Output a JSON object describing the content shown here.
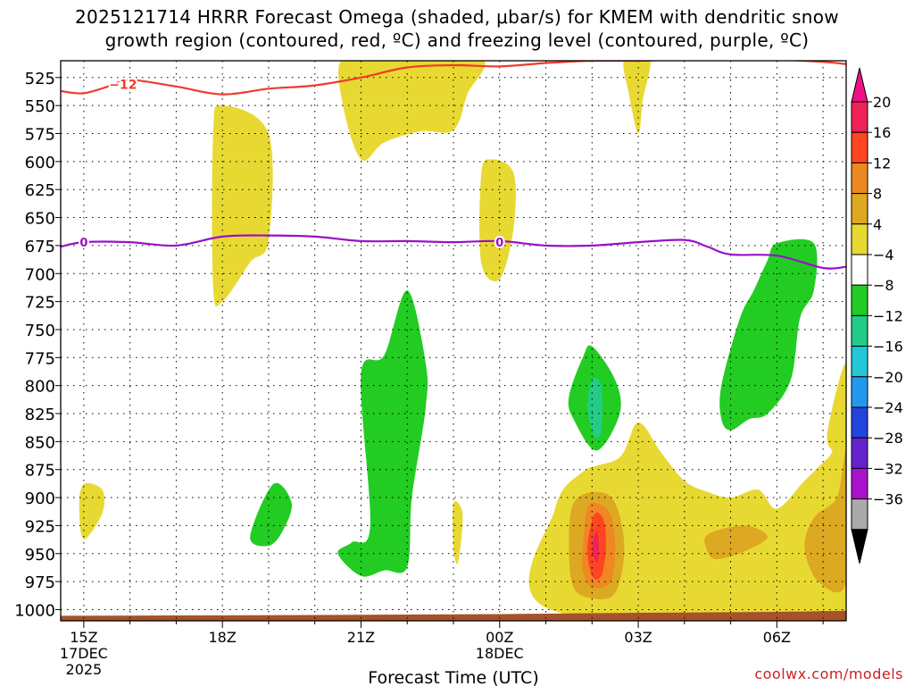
{
  "chart_data": {
    "type": "time-height-contour",
    "title_line1": "2025121714 HRRR Forecast Omega (shaded, μbar/s) for KMEM with dendritic snow",
    "title_line2": "growth region (contoured, red, ºC) and freezing level (contoured, purple, ºC)",
    "xlabel": "Forecast Time (UTC)",
    "xlim_hours": [
      14.5,
      31.5
    ],
    "ylim_hpa": [
      1010,
      510
    ],
    "x_ticks": [
      {
        "hour": 15,
        "label": "15Z",
        "sub1": "17DEC",
        "sub2": "2025"
      },
      {
        "hour": 18,
        "label": "18Z",
        "sub1": "",
        "sub2": ""
      },
      {
        "hour": 21,
        "label": "21Z",
        "sub1": "",
        "sub2": ""
      },
      {
        "hour": 24,
        "label": "00Z",
        "sub1": "18DEC",
        "sub2": ""
      },
      {
        "hour": 27,
        "label": "03Z",
        "sub1": "",
        "sub2": ""
      },
      {
        "hour": 30,
        "label": "06Z",
        "sub1": "",
        "sub2": ""
      }
    ],
    "y_ticks": [
      525,
      550,
      575,
      600,
      625,
      650,
      675,
      700,
      725,
      750,
      775,
      800,
      825,
      850,
      875,
      900,
      925,
      950,
      975,
      1000
    ],
    "colorbar": {
      "labels": [
        "20",
        "16",
        "12",
        "8",
        "4",
        "−4",
        "−8",
        "−12",
        "−16",
        "−20",
        "−24",
        "−28",
        "−32",
        "−36"
      ],
      "colors": [
        "#ee2255",
        "#ff4422",
        "#ee8822",
        "#dda822",
        "#e8d932",
        "#ffffff",
        "#22cc22",
        "#22cc88",
        "#22c8d8",
        "#2299ee",
        "#2244dd",
        "#6622cc",
        "#aa11cc",
        "#aaaaaa"
      ],
      "top_arrow_color": "#ee1188",
      "bottom_arrow_color": "#000000"
    },
    "freezing_level_label": "0",
    "freezing_level": [
      [
        14.5,
        676
      ],
      [
        15,
        672
      ],
      [
        16,
        672
      ],
      [
        17,
        675
      ],
      [
        18,
        667
      ],
      [
        19,
        666
      ],
      [
        20,
        667
      ],
      [
        21,
        671
      ],
      [
        22,
        671
      ],
      [
        23,
        672
      ],
      [
        24,
        671
      ],
      [
        25,
        675
      ],
      [
        26,
        675
      ],
      [
        27,
        672
      ],
      [
        28,
        670
      ],
      [
        28.5,
        676
      ],
      [
        29,
        683
      ],
      [
        30,
        684
      ],
      [
        31,
        695
      ],
      [
        31.5,
        694
      ]
    ],
    "dgz_label": "−12",
    "dgz_top": [
      [
        14.5,
        537
      ],
      [
        15,
        539
      ],
      [
        15.6,
        532
      ],
      [
        16,
        527
      ],
      [
        17,
        533
      ],
      [
        18,
        540
      ],
      [
        19,
        535
      ],
      [
        20,
        532
      ],
      [
        21,
        525
      ],
      [
        22,
        516
      ],
      [
        23,
        514
      ],
      [
        24,
        515
      ],
      [
        25,
        512
      ],
      [
        26,
        510
      ],
      [
        27,
        510
      ],
      [
        28,
        509
      ],
      [
        29,
        509
      ],
      [
        30,
        509
      ],
      [
        31,
        511
      ],
      [
        31.5,
        513
      ]
    ],
    "omega_regions": [
      {
        "color": "#e8d932",
        "points": [
          [
            21.6,
            508
          ],
          [
            23.6,
            508
          ],
          [
            23.3,
            540
          ],
          [
            23.0,
            572
          ],
          [
            22.3,
            573
          ],
          [
            21.5,
            583
          ],
          [
            21.0,
            598
          ],
          [
            20.6,
            548
          ],
          [
            20.6,
            508
          ]
        ]
      },
      {
        "color": "#e8d932",
        "points": [
          [
            17.8,
            575
          ],
          [
            18.0,
            550
          ],
          [
            19.0,
            575
          ],
          [
            19.0,
            670
          ],
          [
            18.6,
            690
          ],
          [
            18.0,
            725
          ],
          [
            17.8,
            712
          ]
        ]
      },
      {
        "color": "#e8d932",
        "points": [
          [
            23.6,
            612
          ],
          [
            23.8,
            598
          ],
          [
            24.3,
            610
          ],
          [
            24.3,
            660
          ],
          [
            24.0,
            705
          ],
          [
            23.6,
            690
          ]
        ]
      },
      {
        "color": "#e8d932",
        "points": [
          [
            26.7,
            508
          ],
          [
            27.25,
            508
          ],
          [
            27.1,
            545
          ],
          [
            27.0,
            575
          ],
          [
            26.8,
            540
          ]
        ]
      },
      {
        "color": "#e8d932",
        "points": [
          [
            14.9,
            908
          ],
          [
            15.0,
            888
          ],
          [
            15.4,
            893
          ],
          [
            15.4,
            914
          ],
          [
            15.0,
            937
          ]
        ]
      },
      {
        "color": "#e8d932",
        "points": [
          [
            23.0,
            905
          ],
          [
            23.2,
            915
          ],
          [
            23.1,
            958
          ],
          [
            23.0,
            945
          ]
        ]
      },
      {
        "color": "#e8d932",
        "points": [
          [
            25.1,
            1000
          ],
          [
            25.2,
            910
          ],
          [
            25.8,
            877
          ],
          [
            26.6,
            864
          ],
          [
            27.0,
            833
          ],
          [
            27.5,
            860
          ],
          [
            28.0,
            885
          ],
          [
            28.5,
            895
          ],
          [
            29.0,
            900
          ],
          [
            29.6,
            893
          ],
          [
            30.0,
            910
          ],
          [
            30.6,
            885
          ],
          [
            31.1,
            865
          ],
          [
            31.5,
            852
          ],
          [
            31.5,
            1005
          ]
        ]
      },
      {
        "color": "#e8d932",
        "points": [
          [
            31.1,
            840
          ],
          [
            31.5,
            780
          ],
          [
            31.5,
            862
          ],
          [
            31.2,
            858
          ]
        ]
      },
      {
        "color": "#dda822",
        "points": [
          [
            25.5,
            945
          ],
          [
            25.6,
            905
          ],
          [
            26.1,
            895
          ],
          [
            26.5,
            905
          ],
          [
            26.7,
            945
          ],
          [
            26.5,
            985
          ],
          [
            26.0,
            990
          ],
          [
            25.6,
            980
          ]
        ]
      },
      {
        "color": "#dda822",
        "points": [
          [
            28.5,
            948
          ],
          [
            28.5,
            933
          ],
          [
            29.3,
            925
          ],
          [
            29.8,
            935
          ],
          [
            29.3,
            948
          ],
          [
            28.7,
            955
          ]
        ]
      },
      {
        "color": "#dda822",
        "points": [
          [
            30.6,
            945
          ],
          [
            30.8,
            918
          ],
          [
            31.3,
            900
          ],
          [
            31.5,
            860
          ],
          [
            31.5,
            975
          ],
          [
            30.9,
            975
          ]
        ]
      },
      {
        "color": "#ee8822",
        "points": [
          [
            25.8,
            945
          ],
          [
            25.9,
            910
          ],
          [
            26.1,
            905
          ],
          [
            26.4,
            915
          ],
          [
            26.5,
            945
          ],
          [
            26.4,
            975
          ],
          [
            26.0,
            980
          ],
          [
            25.8,
            965
          ]
        ]
      },
      {
        "color": "#ff4422",
        "points": [
          [
            25.9,
            945
          ],
          [
            26.05,
            915
          ],
          [
            26.25,
            920
          ],
          [
            26.3,
            945
          ],
          [
            26.2,
            970
          ],
          [
            26.0,
            970
          ]
        ]
      },
      {
        "color": "#ee2255",
        "points": [
          [
            26.0,
            945
          ],
          [
            26.1,
            930
          ],
          [
            26.15,
            945
          ],
          [
            26.1,
            958
          ]
        ]
      },
      {
        "color": "#22cc22",
        "points": [
          [
            18.6,
            935
          ],
          [
            19.1,
            888
          ],
          [
            19.5,
            905
          ],
          [
            19.3,
            930
          ],
          [
            19.0,
            943
          ]
        ]
      },
      {
        "color": "#22cc22",
        "points": [
          [
            20.5,
            950
          ],
          [
            20.8,
            940
          ],
          [
            21.2,
            925
          ],
          [
            21.0,
            790
          ],
          [
            21.5,
            773
          ],
          [
            22.0,
            715
          ],
          [
            22.4,
            780
          ],
          [
            22.4,
            820
          ],
          [
            22.1,
            900
          ],
          [
            22.0,
            962
          ],
          [
            21.5,
            965
          ],
          [
            21.0,
            970
          ]
        ]
      },
      {
        "color": "#22cc22",
        "points": [
          [
            25.5,
            810
          ],
          [
            25.8,
            775
          ],
          [
            26.0,
            765
          ],
          [
            26.5,
            795
          ],
          [
            26.6,
            825
          ],
          [
            26.1,
            858
          ],
          [
            25.6,
            830
          ]
        ]
      },
      {
        "color": "#22cc88",
        "points": [
          [
            25.9,
            820
          ],
          [
            26.0,
            795
          ],
          [
            26.2,
            800
          ],
          [
            26.2,
            840
          ],
          [
            26.05,
            845
          ]
        ]
      },
      {
        "color": "#22cc22",
        "points": [
          [
            28.8,
            800
          ],
          [
            29.2,
            740
          ],
          [
            29.5,
            715
          ],
          [
            29.8,
            688
          ],
          [
            30.0,
            673
          ],
          [
            30.8,
            673
          ],
          [
            30.8,
            715
          ],
          [
            30.5,
            740
          ],
          [
            30.3,
            795
          ],
          [
            29.8,
            825
          ],
          [
            29.4,
            830
          ],
          [
            29.0,
            840
          ],
          [
            28.8,
            830
          ]
        ]
      }
    ],
    "terrain_color": "#a6522a"
  },
  "credit": "coolwx.com/models"
}
